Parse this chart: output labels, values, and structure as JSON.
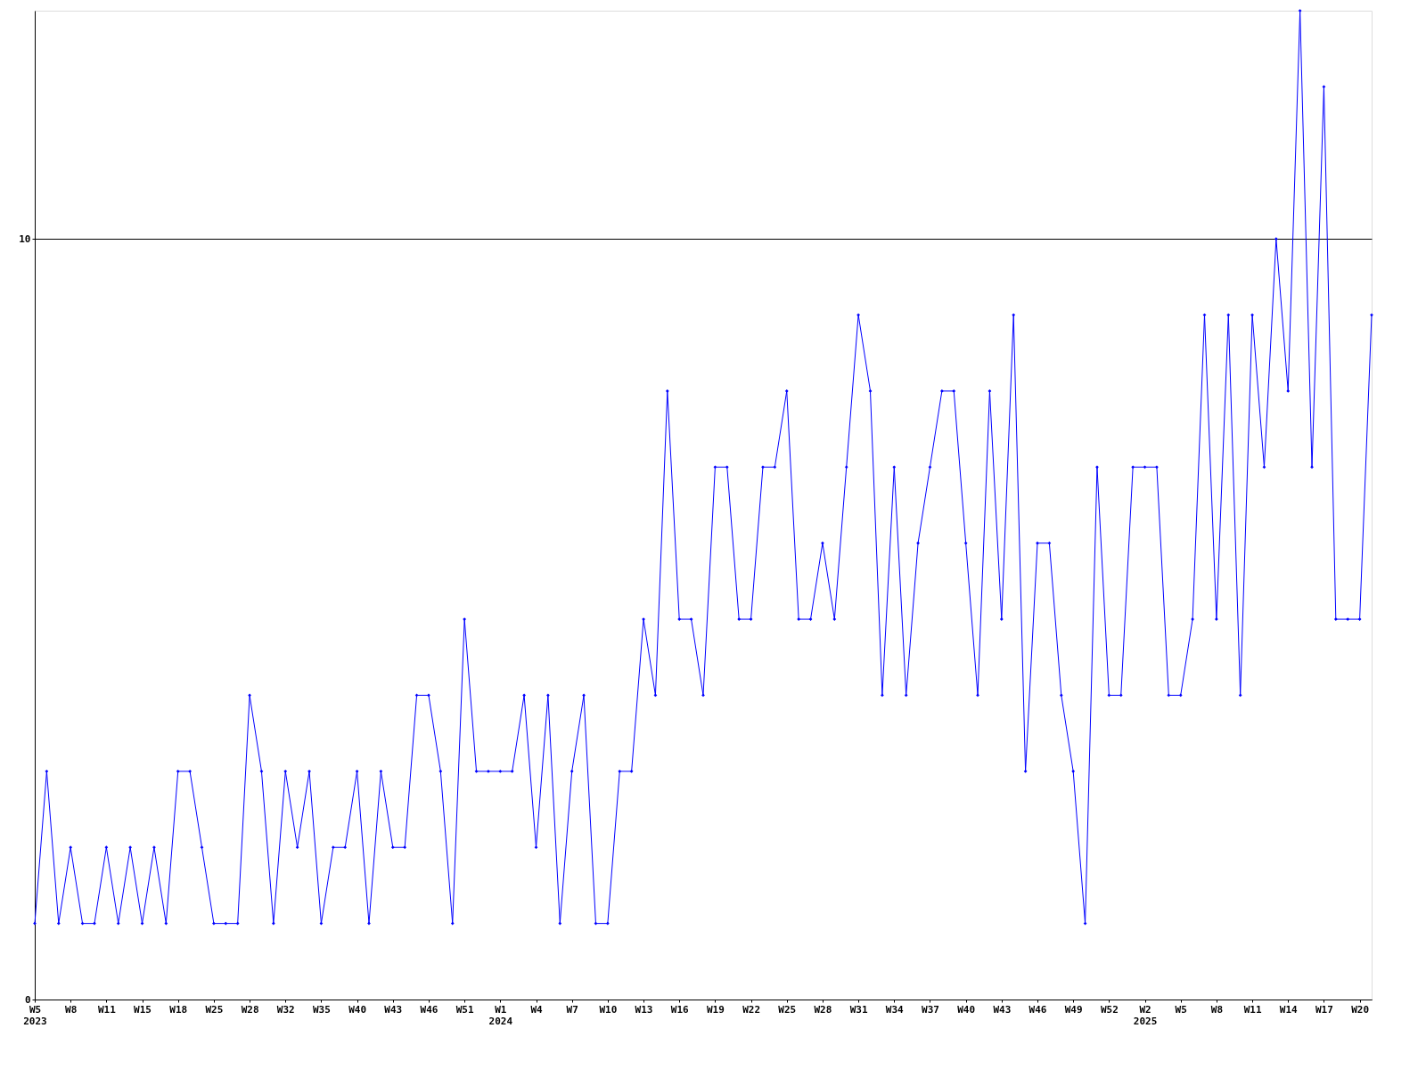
{
  "chart_data": {
    "type": "line",
    "categories": [
      "W5\n2023",
      null,
      null,
      "W8",
      null,
      null,
      "W11",
      null,
      null,
      "W15",
      null,
      null,
      "W18",
      null,
      null,
      "W25",
      null,
      null,
      "W28",
      null,
      null,
      "W32",
      null,
      null,
      "W35",
      null,
      null,
      "W40",
      null,
      null,
      "W43",
      null,
      null,
      "W46",
      null,
      null,
      "W51",
      null,
      null,
      "W1\n2024",
      null,
      null,
      "W4",
      null,
      null,
      "W7",
      null,
      null,
      "W10",
      null,
      null,
      "W13",
      null,
      null,
      "W16",
      null,
      null,
      "W19",
      null,
      null,
      "W22",
      null,
      null,
      "W25",
      null,
      null,
      "W28",
      null,
      null,
      "W31",
      null,
      null,
      "W34",
      null,
      null,
      "W37",
      null,
      null,
      "W40",
      null,
      null,
      "W43",
      null,
      null,
      "W46",
      null,
      null,
      "W49",
      null,
      null,
      "W52",
      null,
      null,
      "W2\n2025",
      null,
      null,
      "W5",
      null,
      null,
      "W8",
      null,
      null,
      "W11",
      null,
      null,
      "W14",
      null,
      null,
      "W17",
      null,
      null,
      "W20",
      null
    ],
    "series": [
      {
        "color": "#0000ff",
        "values": [
          1,
          3,
          1,
          2,
          1,
          1,
          2,
          1,
          2,
          1,
          2,
          1,
          3,
          3,
          2,
          1,
          1,
          1,
          4,
          3,
          1,
          3,
          2,
          3,
          1,
          2,
          2,
          3,
          1,
          3,
          2,
          2,
          4,
          4,
          3,
          1,
          5,
          3,
          3,
          3,
          3,
          4,
          2,
          4,
          1,
          3,
          4,
          1,
          1,
          3,
          3,
          5,
          4,
          8,
          5,
          5,
          4,
          7,
          7,
          5,
          5,
          7,
          7,
          8,
          5,
          5,
          6,
          5,
          7,
          9,
          8,
          4,
          7,
          4,
          6,
          7,
          8,
          8,
          6,
          4,
          8,
          5,
          9,
          3,
          6,
          6,
          4,
          3,
          1,
          7,
          4,
          4,
          7,
          7,
          7,
          4,
          4,
          5,
          9,
          5,
          9,
          4,
          9,
          7,
          10,
          8,
          13,
          7,
          12,
          5,
          5,
          5,
          9
        ]
      }
    ],
    "ylim": [
      0,
      13
    ],
    "yticks": [
      0,
      10
    ],
    "grid": "y",
    "marker": "diamond",
    "line_style": "solid"
  }
}
